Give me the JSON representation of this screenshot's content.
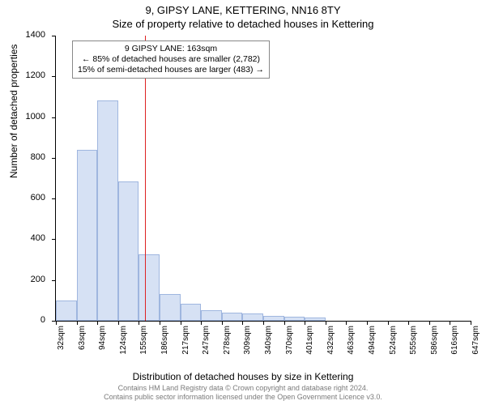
{
  "title": "9, GIPSY LANE, KETTERING, NN16 8TY",
  "subtitle": "Size of property relative to detached houses in Kettering",
  "ylabel": "Number of detached properties",
  "xlabel": "Distribution of detached houses by size in Kettering",
  "footer1": "Contains HM Land Registry data © Crown copyright and database right 2024.",
  "footer2": "Contains public sector information licensed under the Open Government Licence v3.0.",
  "annot": {
    "line1": "9 GIPSY LANE: 163sqm",
    "line2": "← 85% of detached houses are smaller (2,782)",
    "line3": "15% of semi-detached houses are larger (483) →"
  },
  "chart": {
    "type": "histogram",
    "ylim": [
      0,
      1400
    ],
    "yticks": [
      0,
      200,
      400,
      600,
      800,
      1000,
      1200,
      1400
    ],
    "bar_fill": "#d6e1f4",
    "bar_stroke": "#9fb6df",
    "vline_x_index": 4.3,
    "vline_color": "#d22",
    "xticks": [
      "32sqm",
      "63sqm",
      "94sqm",
      "124sqm",
      "155sqm",
      "186sqm",
      "217sqm",
      "247sqm",
      "278sqm",
      "309sqm",
      "340sqm",
      "370sqm",
      "401sqm",
      "432sqm",
      "463sqm",
      "494sqm",
      "524sqm",
      "555sqm",
      "586sqm",
      "616sqm",
      "647sqm"
    ],
    "values": [
      100,
      840,
      1080,
      685,
      325,
      130,
      85,
      50,
      40,
      35,
      25,
      20,
      15,
      0,
      0,
      0,
      0,
      0,
      0,
      0
    ]
  }
}
